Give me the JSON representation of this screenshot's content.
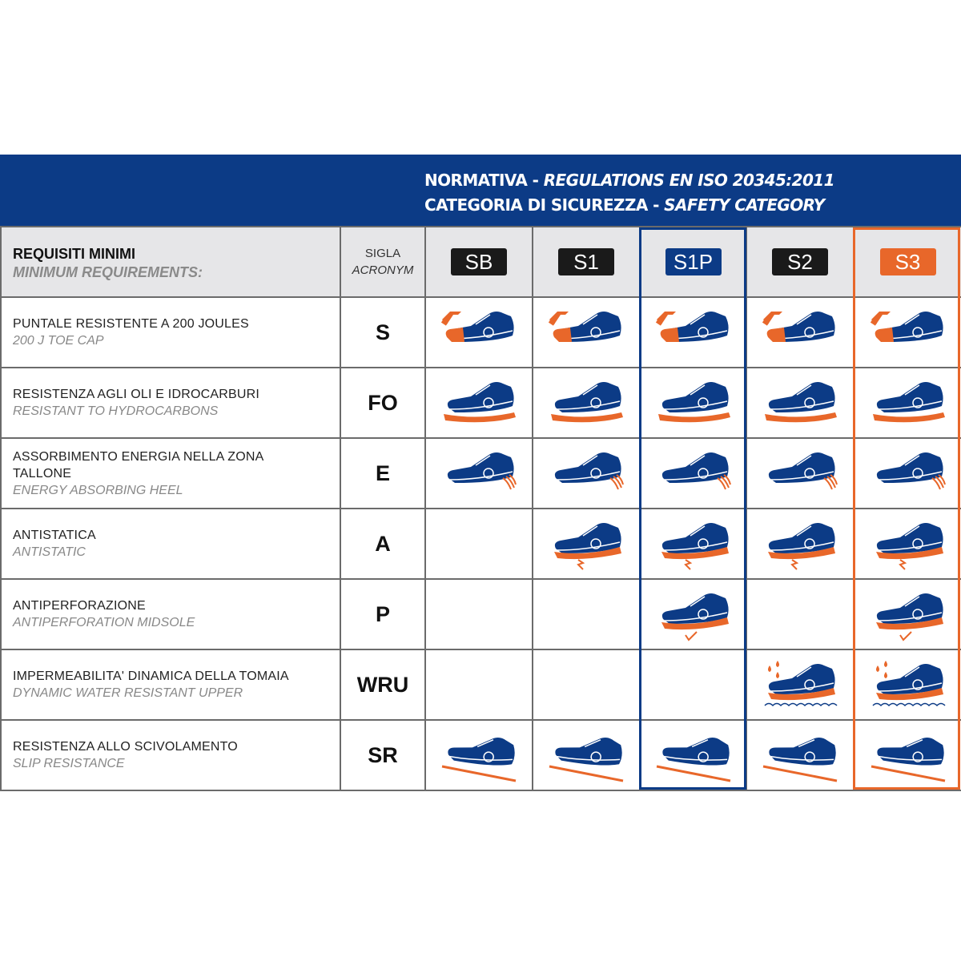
{
  "header": {
    "line1_it": "NORMATIVA",
    "line1_sep": " - ",
    "line1_en": "REGULATIONS EN ISO 20345:2011",
    "line2_it": "CATEGORIA DI SICUREZZA",
    "line2_sep": " - ",
    "line2_en": "SAFETY CATEGORY"
  },
  "table": {
    "requirements_it": "REQUISITI MINIMI",
    "requirements_en": "MINIMUM REQUIREMENTS:",
    "acronym_it": "SIGLA",
    "acronym_en": "ACRONYM",
    "categories": [
      {
        "label": "SB",
        "color": "#1a1a1a"
      },
      {
        "label": "S1",
        "color": "#1a1a1a"
      },
      {
        "label": "S1P",
        "color": "#0c3b86",
        "highlight": "#0c3b86"
      },
      {
        "label": "S2",
        "color": "#1a1a1a"
      },
      {
        "label": "S3",
        "color": "#e8672a",
        "highlight": "#e8672a"
      }
    ],
    "rows": [
      {
        "it": "PUNTALE RESISTENTE A 200 JOULES",
        "en": "200 J TOE CAP",
        "acronym": "S",
        "icon": "toe-cap-hammer",
        "included": [
          true,
          true,
          true,
          true,
          true
        ]
      },
      {
        "it": "RESISTENZA AGLI OLI E IDROCARBURI",
        "en": "RESISTANT TO HYDROCARBONS",
        "acronym": "FO",
        "icon": "oil-resistant-sole",
        "included": [
          true,
          true,
          true,
          true,
          true
        ]
      },
      {
        "it": "ASSORBIMENTO ENERGIA NELLA ZONA TALLONE",
        "en": "ENERGY ABSORBING HEEL",
        "acronym": "E",
        "icon": "energy-heel",
        "included": [
          true,
          true,
          true,
          true,
          true
        ]
      },
      {
        "it": "ANTISTATICA",
        "en": "ANTISTATIC",
        "acronym": "A",
        "icon": "antistatic-bolt",
        "included": [
          false,
          true,
          true,
          true,
          true
        ]
      },
      {
        "it": "ANTIPERFORAZIONE",
        "en": "ANTIPERFORATION MIDSOLE",
        "acronym": "P",
        "icon": "antiperforation-nail",
        "included": [
          false,
          false,
          true,
          false,
          true
        ]
      },
      {
        "it": "IMPERMEABILITA' DINAMICA DELLA TOMAIA",
        "en": "DYNAMIC WATER  RESISTANT UPPER",
        "acronym": "WRU",
        "icon": "water-drops",
        "included": [
          false,
          false,
          false,
          true,
          true
        ]
      },
      {
        "it": "RESISTENZA ALLO SCIVOLAMENTO",
        "en": "SLIP RESISTANCE",
        "acronym": "SR",
        "icon": "slip-ramp",
        "included": [
          true,
          true,
          true,
          true,
          true
        ]
      }
    ]
  },
  "colors": {
    "blue": "#0c3b86",
    "orange": "#e8672a",
    "header_gray": "#e6e6e8"
  }
}
